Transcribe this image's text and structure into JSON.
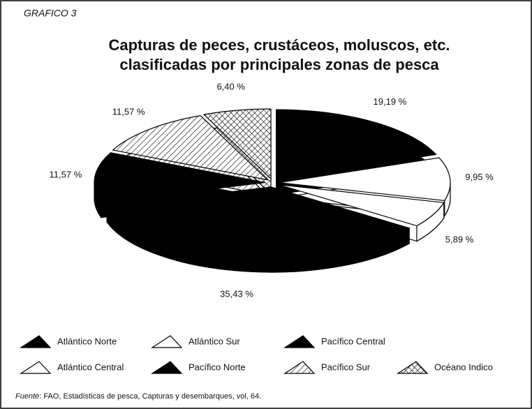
{
  "chart_data": {
    "type": "pie",
    "figure_label": "GRAFICO 3",
    "title": [
      "Capturas de peces, crustáceos, moluscos, etc.",
      "clasificadas por principales zonas de pesca"
    ],
    "categories": [
      "Atlántico Norte",
      "Atlántico Central",
      "Atlántico Sur",
      "Pacífico Norte",
      "Pacífico Central",
      "Pacífico Sur",
      "Océano Indico"
    ],
    "values": [
      19.19,
      9.95,
      5.89,
      35.43,
      11.57,
      11.57,
      6.4
    ],
    "value_labels": [
      "19,19 %",
      "9,95 %",
      "5,89 %",
      "35,43 %",
      "11,57 %",
      "11,57 %",
      "6,40 %"
    ],
    "fills": [
      "#000000",
      "#ffffff",
      "#ffffff",
      "#000000",
      "#000000",
      "hatch",
      "crosshatch"
    ],
    "source_label": "Fuente",
    "source": ": FAO, Estadísticas de pesca, Capturas y desembarques, vol, 64."
  }
}
